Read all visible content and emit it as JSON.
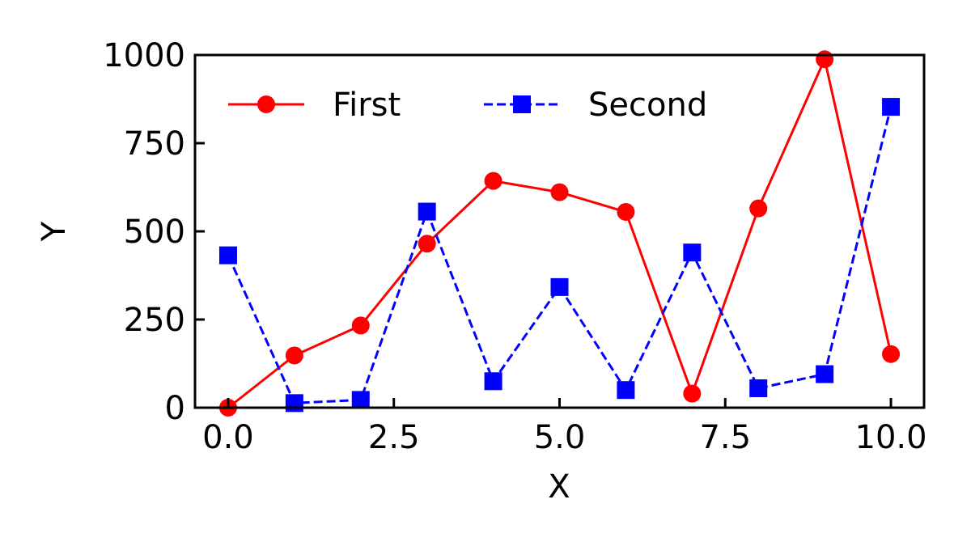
{
  "chart_data": {
    "type": "line",
    "title": "",
    "xlabel": "X",
    "ylabel": "Y",
    "xlim": [
      -0.5,
      10.5
    ],
    "ylim": [
      0,
      1000
    ],
    "xticks": [
      0.0,
      2.5,
      5.0,
      7.5,
      10.0
    ],
    "xtick_labels": [
      "0.0",
      "2.5",
      "5.0",
      "7.5",
      "10.0"
    ],
    "yticks": [
      0,
      250,
      500,
      750,
      1000
    ],
    "ytick_labels": [
      "0",
      "250",
      "500",
      "750",
      "1000"
    ],
    "grid": false,
    "legend_position": "top-left",
    "x": [
      0,
      1,
      2,
      3,
      4,
      5,
      6,
      7,
      8,
      9,
      10
    ],
    "series": [
      {
        "name": "First",
        "color": "#ff0000",
        "marker": "circle",
        "linestyle": "solid",
        "values": [
          0,
          148,
          233,
          465,
          643,
          611,
          555,
          40,
          565,
          988,
          152
        ]
      },
      {
        "name": "Second",
        "color": "#0000ff",
        "marker": "square",
        "linestyle": "dashed",
        "values": [
          432,
          13,
          22,
          556,
          75,
          342,
          50,
          440,
          55,
          95,
          853
        ]
      }
    ]
  }
}
